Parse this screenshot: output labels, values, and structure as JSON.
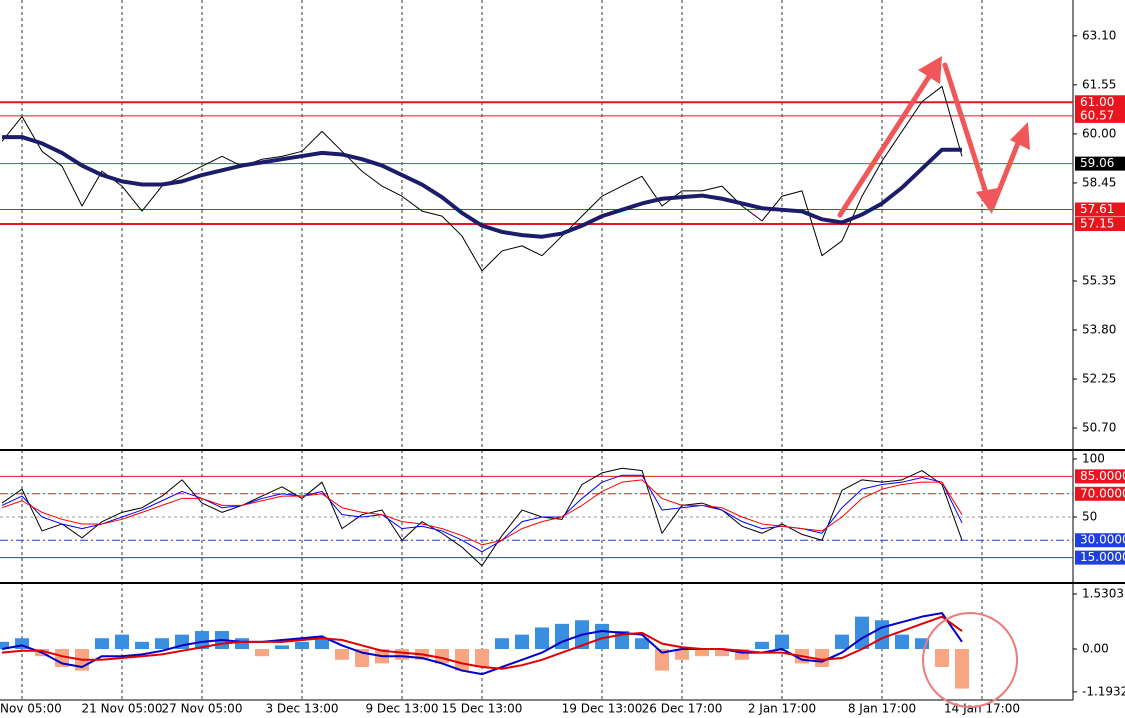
{
  "chart_data": [
    {
      "type": "line",
      "categories": [
        null,
        "Nov 05:00",
        null,
        null,
        null,
        null,
        "21 Nov 05:00",
        null,
        null,
        null,
        "27 Nov 05:00",
        null,
        null,
        null,
        null,
        "3 Dec 13:00",
        null,
        null,
        null,
        null,
        "9 Dec 13:00",
        null,
        null,
        null,
        "15 Dec 13:00",
        null,
        null,
        null,
        null,
        null,
        "19 Dec 13:00",
        null,
        null,
        null,
        "26 Dec 17:00",
        null,
        null,
        null,
        null,
        "2 Jan 17:00",
        null,
        null,
        null,
        null,
        "8 Jan 17:00",
        null,
        null,
        null,
        null,
        "14 Jan 17:00",
        null,
        null,
        null,
        null
      ],
      "ylim": [
        50.07,
        64.17
      ],
      "yticks": [
        {
          "value": 63.1,
          "label": "63.10"
        },
        61.55,
        {
          "value": 60,
          "label": "60.00"
        },
        58.45,
        55.35,
        {
          "value": 53.8,
          "label": "53.80"
        },
        52.25,
        {
          "value": 50.7,
          "label": "50.70"
        }
      ],
      "xgrid": true,
      "levels": [
        {
          "value": 61,
          "label": "61.00",
          "color": "#e8141e",
          "width": 2
        },
        {
          "value": 60.57,
          "label": "60.57",
          "color": "#e8141e",
          "width": 1
        },
        {
          "value": 59.06,
          "label": "59.06",
          "color": "#3a5fcd",
          "box": "#000000",
          "width": 1
        },
        {
          "value": 57.61,
          "label": "57.61",
          "color": "#e8141e",
          "width": 1
        },
        {
          "value": 57.15,
          "label": "57.15",
          "color": "#e8141e",
          "width": 2
        }
      ],
      "series": [
        {
          "color": "#000000",
          "width": 1,
          "values": [
            59.76,
            60.55,
            59.45,
            58.98,
            57.72,
            58.82,
            58.35,
            57.56,
            58.35,
            58.66,
            58.98,
            59.29,
            58.98,
            59.2,
            59.29,
            59.45,
            60.08,
            59.45,
            58.82,
            58.35,
            58.03,
            57.56,
            57.4,
            56.77,
            55.67,
            56.3,
            56.46,
            56.15,
            56.77,
            57.4,
            58.03,
            58.35,
            58.66,
            57.72,
            58.2,
            58.2,
            58.35,
            57.72,
            57.25,
            58.03,
            58.2,
            56.15,
            56.62,
            58.03,
            59.14,
            60.08,
            61.02,
            61.5,
            59.29,
            null,
            null,
            null,
            null,
            null
          ]
        },
        {
          "color": "#1c1c6b",
          "width": 4,
          "values": [
            59.9,
            59.9,
            59.7,
            59.4,
            59.0,
            58.7,
            58.5,
            58.4,
            58.4,
            58.5,
            58.7,
            58.85,
            59.0,
            59.1,
            59.2,
            59.3,
            59.4,
            59.35,
            59.2,
            59.0,
            58.7,
            58.4,
            58.0,
            57.5,
            57.1,
            56.9,
            56.8,
            56.75,
            56.85,
            57.1,
            57.4,
            57.6,
            57.8,
            57.95,
            58.0,
            58.05,
            57.95,
            57.8,
            57.65,
            57.6,
            57.55,
            57.3,
            57.2,
            57.45,
            57.8,
            58.3,
            58.9,
            59.5,
            59.5,
            null,
            null,
            null,
            null,
            null
          ]
        }
      ]
    },
    {
      "type": "line",
      "ylim": [
        -6,
        106
      ],
      "yticks": [
        100,
        50
      ],
      "levels": [
        {
          "value": 85,
          "label": "85.0000",
          "color": "#e8141e",
          "width": 1
        },
        {
          "value": 70,
          "label": "70.0000",
          "color": "#e8141e",
          "width": 1,
          "style": "dashdot"
        },
        {
          "value": 50,
          "color": "#999999",
          "width": 1,
          "style": "dash"
        },
        {
          "value": 30,
          "label": "30.0000",
          "color": "#1f3fe0",
          "width": 1,
          "style": "dashdot"
        },
        {
          "value": 15,
          "label": "15.0000",
          "color": "#1f3fe0",
          "width": 1
        }
      ],
      "series": [
        {
          "color": "#000000",
          "width": 1,
          "values": [
            62,
            74,
            38,
            44,
            32,
            46,
            54,
            58,
            68,
            82,
            62,
            54,
            60,
            68,
            76,
            66,
            80,
            40,
            52,
            56,
            30,
            46,
            36,
            24,
            8,
            34,
            56,
            50,
            48,
            78,
            88,
            92,
            90,
            36,
            60,
            62,
            56,
            42,
            36,
            44,
            35,
            30,
            73,
            82,
            80,
            82,
            90,
            78,
            30,
            null,
            null,
            null,
            null,
            null
          ]
        },
        {
          "color": "#0000ff",
          "width": 1,
          "values": [
            60,
            68,
            50,
            44,
            40,
            44,
            50,
            56,
            64,
            72,
            66,
            58,
            60,
            66,
            70,
            68,
            72,
            52,
            50,
            52,
            40,
            42,
            38,
            30,
            20,
            30,
            46,
            50,
            50,
            66,
            80,
            86,
            86,
            56,
            58,
            60,
            56,
            46,
            40,
            42,
            40,
            36,
            58,
            74,
            78,
            80,
            84,
            80,
            45,
            null,
            null,
            null,
            null,
            null
          ]
        },
        {
          "color": "#ff0000",
          "width": 1,
          "values": [
            58,
            64,
            54,
            48,
            44,
            44,
            48,
            54,
            60,
            66,
            66,
            60,
            60,
            64,
            68,
            68,
            70,
            58,
            54,
            52,
            46,
            44,
            40,
            34,
            26,
            30,
            40,
            46,
            50,
            60,
            72,
            80,
            82,
            66,
            60,
            60,
            58,
            50,
            44,
            42,
            40,
            38,
            50,
            66,
            74,
            78,
            80,
            80,
            52,
            null,
            null,
            null,
            null,
            null
          ]
        }
      ]
    },
    {
      "type": "combo",
      "ylim": [
        -1.419,
        1.781
      ],
      "yticks": [
        1.5303,
        {
          "value": 0,
          "label": "0.00"
        },
        -1.1932
      ],
      "series": [
        {
          "type": "bar",
          "color": "#3a8ee0",
          "negative_color": "#f7a582",
          "values": [
            0.2,
            0.3,
            -0.2,
            -0.5,
            -0.6,
            0.3,
            0.4,
            0.2,
            0.3,
            0.4,
            0.5,
            0.5,
            0.3,
            -0.2,
            0.1,
            0.2,
            0.3,
            -0.3,
            -0.5,
            -0.4,
            -0.3,
            -0.3,
            -0.4,
            -0.6,
            -0.5,
            0.3,
            0.4,
            0.6,
            0.7,
            0.8,
            0.7,
            0.5,
            0.3,
            -0.6,
            -0.3,
            -0.2,
            -0.2,
            -0.3,
            0.2,
            0.4,
            -0.4,
            -0.5,
            0.4,
            0.9,
            0.8,
            0.4,
            0.3,
            -0.5,
            -1.1,
            null,
            null,
            null,
            null,
            null
          ]
        },
        {
          "type": "line",
          "color": "#0000c8",
          "width": 2,
          "values": [
            0,
            0.1,
            -0.1,
            -0.4,
            -0.5,
            -0.2,
            -0.2,
            -0.15,
            -0.05,
            0.1,
            0.2,
            0.25,
            0.2,
            0.2,
            0.25,
            0.3,
            0.35,
            0.1,
            -0.1,
            -0.2,
            -0.2,
            -0.25,
            -0.4,
            -0.6,
            -0.7,
            -0.5,
            -0.3,
            -0.1,
            0.2,
            0.4,
            0.5,
            0.45,
            0.4,
            -0.1,
            0,
            0,
            0,
            -0.1,
            -0.1,
            0,
            -0.3,
            -0.35,
            -0.1,
            0.3,
            0.6,
            0.75,
            0.9,
            1.0,
            0.2,
            null,
            null,
            null,
            null,
            null
          ]
        },
        {
          "type": "line",
          "color": "#e00000",
          "width": 2,
          "values": [
            -0.1,
            -0.05,
            -0.05,
            -0.2,
            -0.3,
            -0.3,
            -0.25,
            -0.2,
            -0.15,
            -0.05,
            0.05,
            0.15,
            0.2,
            0.2,
            0.2,
            0.25,
            0.3,
            0.25,
            0.1,
            -0.05,
            -0.1,
            -0.15,
            -0.25,
            -0.4,
            -0.5,
            -0.55,
            -0.45,
            -0.3,
            -0.1,
            0.1,
            0.3,
            0.4,
            0.45,
            0.15,
            0.05,
            0,
            0,
            -0.05,
            -0.1,
            -0.1,
            -0.2,
            -0.3,
            -0.25,
            0,
            0.3,
            0.5,
            0.7,
            0.9,
            0.5,
            null,
            null,
            null,
            null,
            null
          ]
        }
      ]
    }
  ]
}
